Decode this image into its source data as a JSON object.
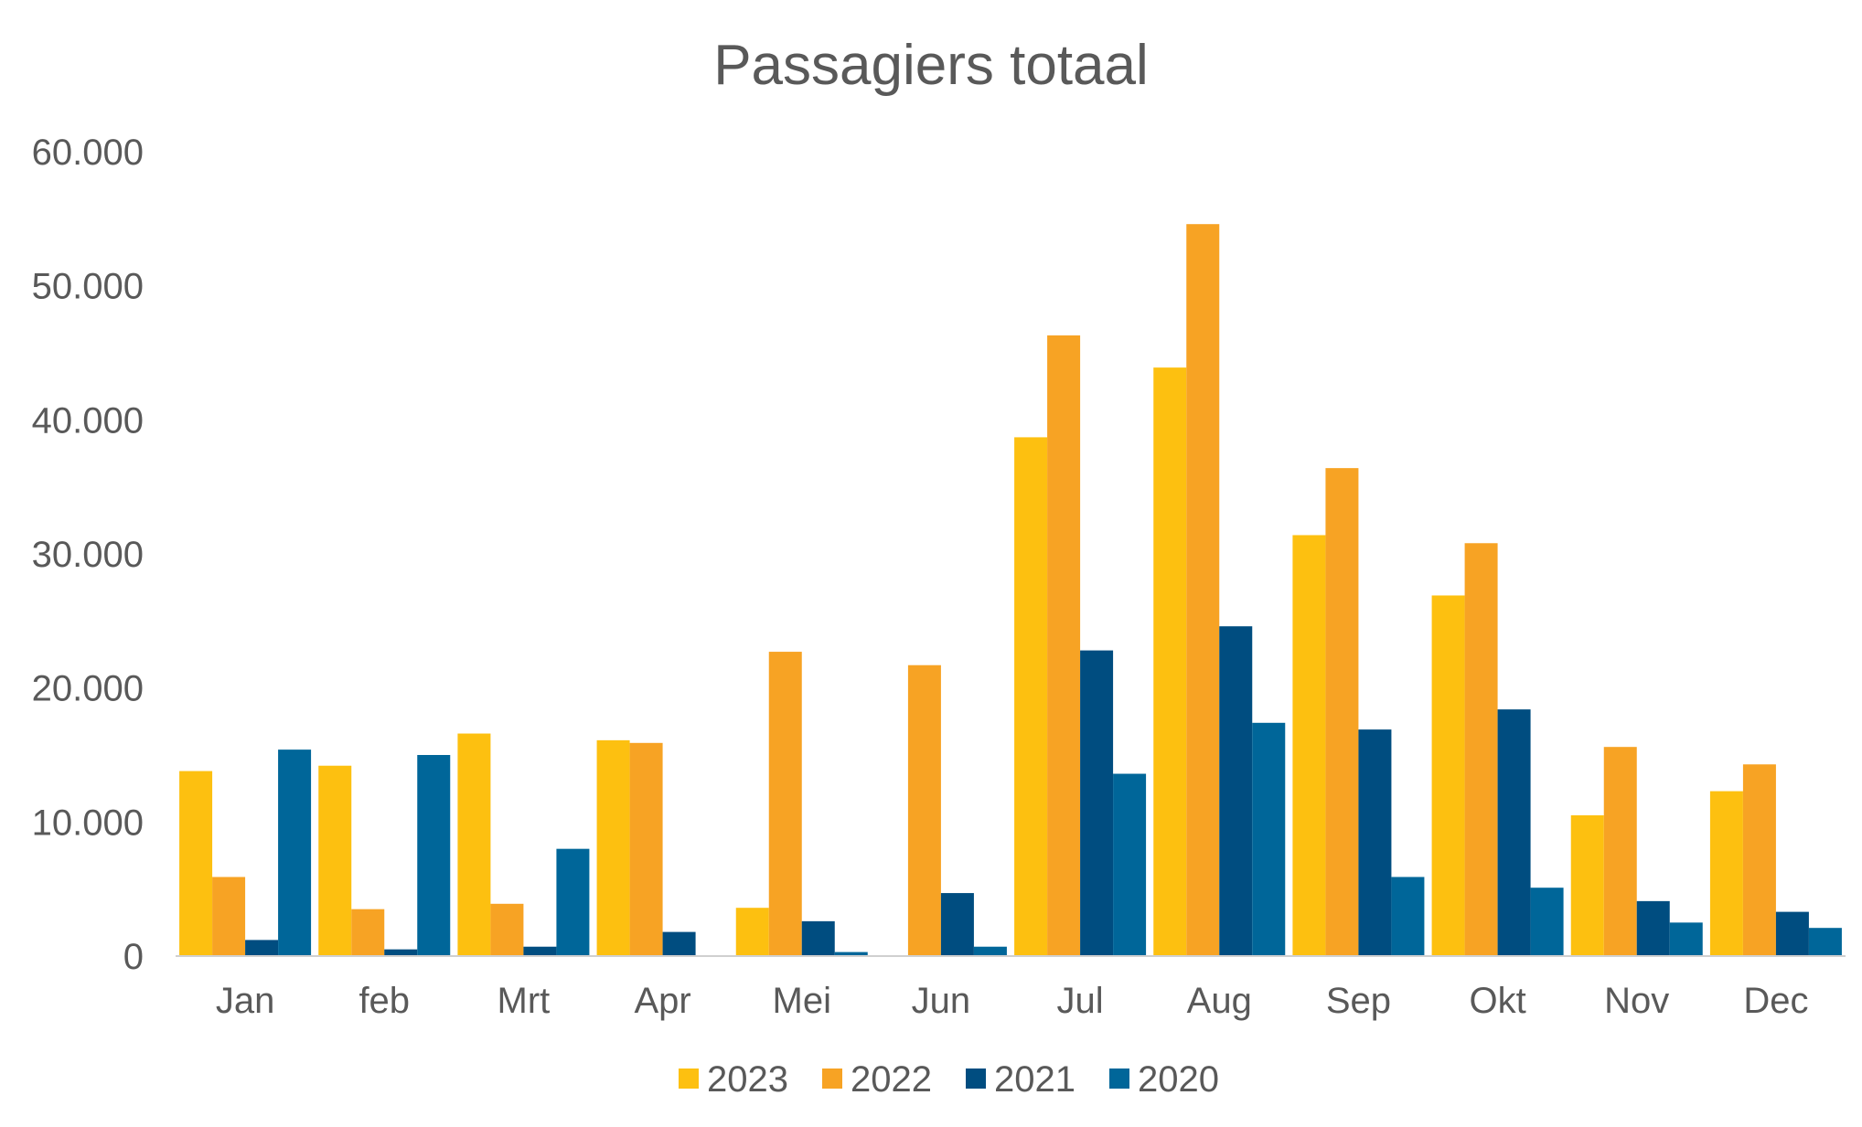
{
  "chart_data": {
    "type": "bar",
    "title": "Passagiers totaal",
    "xlabel": "",
    "ylabel": "",
    "ylim": [
      0,
      60000
    ],
    "yticks": [
      0,
      10000,
      20000,
      30000,
      40000,
      50000,
      60000
    ],
    "ytick_labels": [
      "0",
      "10.000",
      "20.000",
      "30.000",
      "40.000",
      "50.000",
      "60.000"
    ],
    "categories": [
      "Jan",
      "feb",
      "Mrt",
      "Apr",
      "Mei",
      "Jun",
      "Jul",
      "Aug",
      "Sep",
      "Okt",
      "Nov",
      "Dec"
    ],
    "series": [
      {
        "name": "2023",
        "color": "#FDC010",
        "values": [
          13800,
          14200,
          16600,
          16100,
          3600,
          0,
          38700,
          43900,
          31400,
          26900,
          10500,
          12300
        ]
      },
      {
        "name": "2022",
        "color": "#F7A324",
        "values": [
          5900,
          3500,
          3900,
          15900,
          22700,
          21700,
          46300,
          54600,
          36400,
          30800,
          15600,
          14300
        ]
      },
      {
        "name": "2021",
        "color": "#004D80",
        "values": [
          1200,
          500,
          700,
          1800,
          2600,
          4700,
          22800,
          24600,
          16900,
          18400,
          4100,
          3300
        ]
      },
      {
        "name": "2020",
        "color": "#006699",
        "values": [
          15400,
          15000,
          8000,
          0,
          300,
          700,
          13600,
          17400,
          5900,
          5100,
          2500,
          2100
        ]
      }
    ],
    "grid": false,
    "legend_position": "bottom"
  }
}
